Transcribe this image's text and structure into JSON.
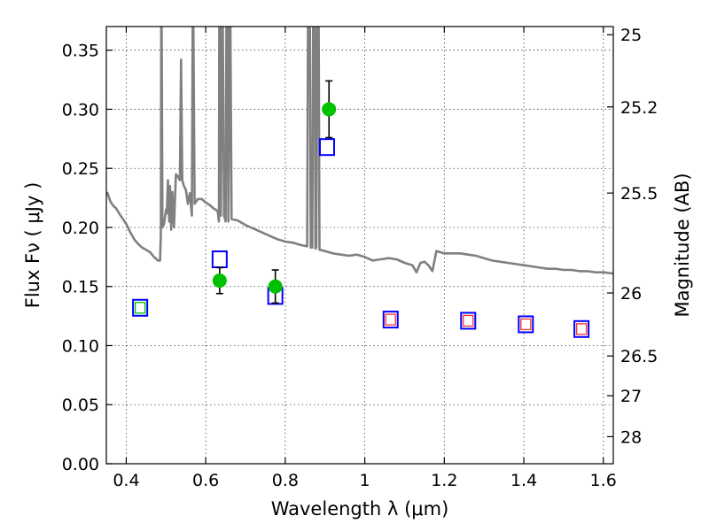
{
  "chart_data": {
    "type": "scatter",
    "title": "",
    "xlabel": "Wavelength  λ (μm)",
    "ylabel": "Flux  Fν  ( μJy )",
    "ylabel_right": "Magnitude (AB)",
    "xlim": [
      0.35,
      1.625
    ],
    "ylim": [
      0.0,
      0.37
    ],
    "grid": true,
    "x_ticks": [
      0.4,
      0.6,
      0.8,
      1.0,
      1.2,
      1.4,
      1.6
    ],
    "x_tick_labels": [
      "0.4",
      "0.6",
      "0.8",
      "1",
      "1.2",
      "1.4",
      "1.6"
    ],
    "y_ticks": [
      0.0,
      0.05,
      0.1,
      0.15,
      0.2,
      0.25,
      0.3,
      0.35
    ],
    "y_tick_labels": [
      "0.00",
      "0.05",
      "0.10",
      "0.15",
      "0.20",
      "0.25",
      "0.30",
      "0.35"
    ],
    "right_ticks": [
      {
        "label": "25",
        "mag": 25.0
      },
      {
        "label": "25.2",
        "mag": 25.2
      },
      {
        "label": "25.5",
        "mag": 25.5
      },
      {
        "label": "26",
        "mag": 26.0
      },
      {
        "label": "26.5",
        "mag": 26.5
      },
      {
        "label": "27",
        "mag": 27.0
      },
      {
        "label": "28",
        "mag": 28.0
      }
    ],
    "series": [
      {
        "kind": "model_spectrum",
        "color": "#808080",
        "points": [
          [
            0.352,
            0.23
          ],
          [
            0.36,
            0.222
          ],
          [
            0.368,
            0.218
          ],
          [
            0.375,
            0.216
          ],
          [
            0.382,
            0.212
          ],
          [
            0.39,
            0.208
          ],
          [
            0.4,
            0.203
          ],
          [
            0.41,
            0.196
          ],
          [
            0.42,
            0.19
          ],
          [
            0.43,
            0.186
          ],
          [
            0.44,
            0.183
          ],
          [
            0.45,
            0.181
          ],
          [
            0.46,
            0.179
          ],
          [
            0.47,
            0.175
          ],
          [
            0.48,
            0.172
          ],
          [
            0.485,
            0.172
          ],
          [
            0.487,
            0.195
          ],
          [
            0.488,
            0.37
          ],
          [
            0.489,
            0.37
          ],
          [
            0.491,
            0.2
          ],
          [
            0.495,
            0.203
          ],
          [
            0.5,
            0.215
          ],
          [
            0.502,
            0.212
          ],
          [
            0.505,
            0.24
          ],
          [
            0.508,
            0.205
          ],
          [
            0.51,
            0.235
          ],
          [
            0.513,
            0.198
          ],
          [
            0.516,
            0.23
          ],
          [
            0.52,
            0.2
          ],
          [
            0.525,
            0.245
          ],
          [
            0.53,
            0.243
          ],
          [
            0.535,
            0.24
          ],
          [
            0.538,
            0.342
          ],
          [
            0.541,
            0.24
          ],
          [
            0.545,
            0.235
          ],
          [
            0.55,
            0.232
          ],
          [
            0.555,
            0.22
          ],
          [
            0.56,
            0.229
          ],
          [
            0.565,
            0.21
          ],
          [
            0.567,
            0.37
          ],
          [
            0.569,
            0.37
          ],
          [
            0.572,
            0.22
          ],
          [
            0.58,
            0.224
          ],
          [
            0.59,
            0.224
          ],
          [
            0.6,
            0.221
          ],
          [
            0.61,
            0.219
          ],
          [
            0.62,
            0.216
          ],
          [
            0.63,
            0.214
          ],
          [
            0.633,
            0.205
          ],
          [
            0.634,
            0.37
          ],
          [
            0.635,
            0.37
          ],
          [
            0.638,
            0.21
          ],
          [
            0.641,
            0.37
          ],
          [
            0.643,
            0.37
          ],
          [
            0.646,
            0.21
          ],
          [
            0.65,
            0.205
          ],
          [
            0.652,
            0.37
          ],
          [
            0.655,
            0.37
          ],
          [
            0.657,
            0.205
          ],
          [
            0.66,
            0.37
          ],
          [
            0.662,
            0.37
          ],
          [
            0.665,
            0.207
          ],
          [
            0.68,
            0.206
          ],
          [
            0.7,
            0.202
          ],
          [
            0.72,
            0.199
          ],
          [
            0.74,
            0.196
          ],
          [
            0.76,
            0.193
          ],
          [
            0.78,
            0.19
          ],
          [
            0.8,
            0.188
          ],
          [
            0.82,
            0.187
          ],
          [
            0.84,
            0.185
          ],
          [
            0.855,
            0.184
          ],
          [
            0.857,
            0.37
          ],
          [
            0.862,
            0.37
          ],
          [
            0.864,
            0.183
          ],
          [
            0.868,
            0.183
          ],
          [
            0.87,
            0.37
          ],
          [
            0.874,
            0.37
          ],
          [
            0.876,
            0.182
          ],
          [
            0.878,
            0.183
          ],
          [
            0.88,
            0.37
          ],
          [
            0.884,
            0.37
          ],
          [
            0.886,
            0.181
          ],
          [
            0.9,
            0.18
          ],
          [
            0.92,
            0.178
          ],
          [
            0.94,
            0.177
          ],
          [
            0.96,
            0.176
          ],
          [
            0.98,
            0.177
          ],
          [
            1.0,
            0.175
          ],
          [
            1.02,
            0.172
          ],
          [
            1.04,
            0.173
          ],
          [
            1.06,
            0.174
          ],
          [
            1.08,
            0.173
          ],
          [
            1.1,
            0.17
          ],
          [
            1.12,
            0.168
          ],
          [
            1.13,
            0.162
          ],
          [
            1.14,
            0.17
          ],
          [
            1.15,
            0.171
          ],
          [
            1.16,
            0.168
          ],
          [
            1.17,
            0.163
          ],
          [
            1.18,
            0.18
          ],
          [
            1.2,
            0.178
          ],
          [
            1.22,
            0.178
          ],
          [
            1.24,
            0.178
          ],
          [
            1.26,
            0.177
          ],
          [
            1.28,
            0.176
          ],
          [
            1.3,
            0.174
          ],
          [
            1.32,
            0.172
          ],
          [
            1.34,
            0.171
          ],
          [
            1.36,
            0.17
          ],
          [
            1.38,
            0.169
          ],
          [
            1.4,
            0.168
          ],
          [
            1.42,
            0.167
          ],
          [
            1.44,
            0.166
          ],
          [
            1.46,
            0.165
          ],
          [
            1.48,
            0.165
          ],
          [
            1.5,
            0.164
          ],
          [
            1.52,
            0.164
          ],
          [
            1.54,
            0.163
          ],
          [
            1.56,
            0.163
          ],
          [
            1.58,
            0.162
          ],
          [
            1.6,
            0.162
          ],
          [
            1.625,
            0.161
          ]
        ]
      },
      {
        "kind": "model_photometry",
        "marker": "open-square",
        "color": "#0000ff",
        "points": [
          [
            0.435,
            0.132
          ],
          [
            0.635,
            0.173
          ],
          [
            0.775,
            0.142
          ],
          [
            0.905,
            0.268
          ],
          [
            1.065,
            0.122
          ],
          [
            1.26,
            0.121
          ],
          [
            1.405,
            0.118
          ],
          [
            1.545,
            0.114
          ]
        ]
      },
      {
        "kind": "observed",
        "marker": "filled-circle",
        "color": "#00c000",
        "points": [
          {
            "x": 0.635,
            "y": 0.155,
            "yerr": 0.011
          },
          {
            "x": 0.775,
            "y": 0.15,
            "yerr": 0.014
          },
          {
            "x": 0.91,
            "y": 0.3,
            "yerr": 0.024
          }
        ]
      },
      {
        "kind": "small_square_inner",
        "marker": "open-square-small",
        "points": [
          {
            "x": 0.435,
            "y": 0.132,
            "color": "#00c000"
          },
          {
            "x": 1.065,
            "y": 0.122,
            "color": "#ff3030"
          },
          {
            "x": 1.26,
            "y": 0.121,
            "color": "#ff3030"
          },
          {
            "x": 1.405,
            "y": 0.118,
            "color": "#ff3030"
          },
          {
            "x": 1.545,
            "y": 0.114,
            "color": "#ff3030"
          }
        ]
      }
    ]
  }
}
